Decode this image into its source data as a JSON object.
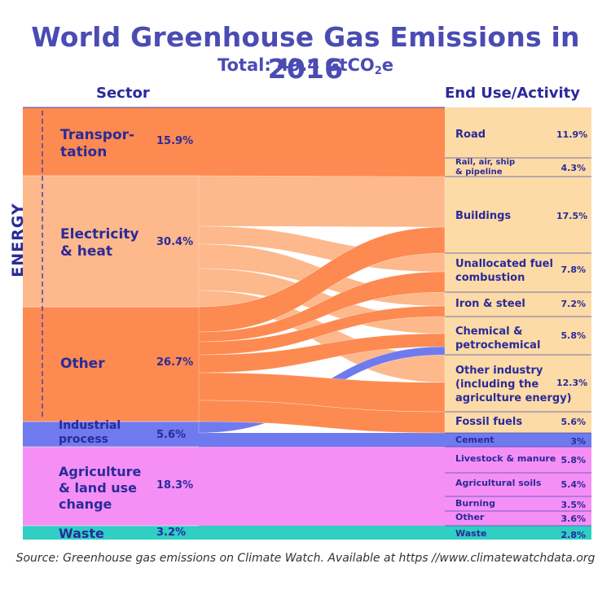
{
  "title": "World Greenhouse Gas Emissions in 2016",
  "subtitle": {
    "prefix": "Total: 49.4 GtCO",
    "sub": "2",
    "suffix": "e"
  },
  "headers": {
    "left": "Sector",
    "right": "End Use/Activity"
  },
  "energy_label": "ENERGY",
  "sectors": [
    {
      "name": "Transpor-\ntation",
      "pct": "15.9%"
    },
    {
      "name": "Electricity\n& heat",
      "pct": "30.4%"
    },
    {
      "name": "Other",
      "pct": "26.7%"
    },
    {
      "name": "Industrial\nprocess",
      "pct": "5.6%"
    },
    {
      "name": "Agriculture\n& land use\nchange",
      "pct": "18.3%"
    },
    {
      "name": "Waste",
      "pct": "3.2%"
    }
  ],
  "end_uses": [
    {
      "name": "Road",
      "pct": "11.9%"
    },
    {
      "name": "Rail, air, ship\n& pipeline",
      "pct": "4.3%"
    },
    {
      "name": "Buildings",
      "pct": "17.5%"
    },
    {
      "name": "Unallocated fuel\ncombustion",
      "pct": "7.8%"
    },
    {
      "name": "Iron & steel",
      "pct": "7.2%"
    },
    {
      "name": "Chemical &\npetrochemical",
      "pct": "5.8%"
    },
    {
      "name": "Other industry\n(including the\nagriculture energy)",
      "pct": "12.3%"
    },
    {
      "name": "Fossil fuels",
      "pct": "5.6%"
    },
    {
      "name": "Cement",
      "pct": "3%"
    },
    {
      "name": "Livestock & manure",
      "pct": "5.8%"
    },
    {
      "name": "Agricultural soils",
      "pct": "5.4%"
    },
    {
      "name": "Burning",
      "pct": "3.5%"
    },
    {
      "name": "Other",
      "pct": "3.6%"
    },
    {
      "name": "Waste",
      "pct": "2.8%"
    }
  ],
  "colors": {
    "transport": "#fd8a50",
    "electricity": "#fdb88b",
    "other": "#fd8a50",
    "industrial": "#6f7aee",
    "agriculture": "#f58ff5",
    "waste": "#2fcfc4",
    "end_energy": "#fddba6",
    "title": "#4b4bb4",
    "label": "#2a2a9a"
  },
  "source": "Source: Greenhouse gas emissions on Climate Watch. Available at  https //www.climatewatchdata.org"
}
